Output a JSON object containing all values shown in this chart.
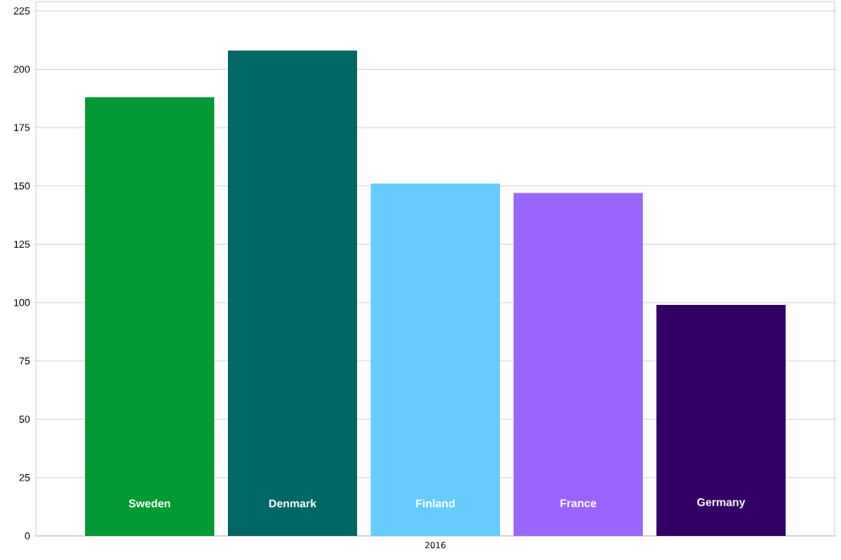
{
  "chart_data": {
    "type": "bar",
    "categories": [
      "2016"
    ],
    "series": [
      {
        "name": "Sweden",
        "color": "#039935",
        "values": [
          188
        ]
      },
      {
        "name": "Denmark",
        "color": "#006766",
        "values": [
          208
        ]
      },
      {
        "name": "Finland",
        "color": "#66cbff",
        "values": [
          151
        ]
      },
      {
        "name": "France",
        "color": "#9a66ff",
        "values": [
          147
        ]
      },
      {
        "name": "Germany",
        "color": "#330066",
        "values": [
          99
        ]
      }
    ],
    "ylim": [
      0,
      229
    ],
    "yticks": [
      0,
      25,
      50,
      75,
      100,
      125,
      150,
      175,
      200,
      225
    ],
    "grid": "y"
  }
}
